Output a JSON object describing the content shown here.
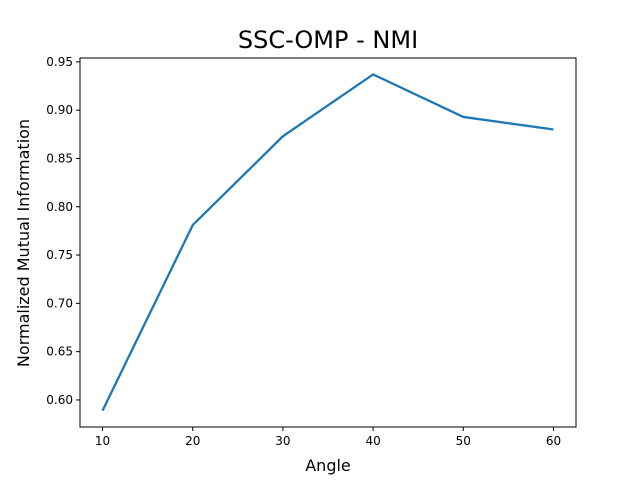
{
  "chart_data": {
    "type": "line",
    "title": "SSC-OMP - NMI",
    "xlabel": "Angle",
    "ylabel": "Normalized Mutual Information",
    "x": [
      10,
      20,
      30,
      40,
      50,
      60
    ],
    "series": [
      {
        "values": [
          0.589,
          0.781,
          0.873,
          0.937,
          0.893,
          0.88
        ],
        "color": "#1f77b4"
      }
    ],
    "xlim": [
      7.5,
      62.5
    ],
    "ylim": [
      0.572,
      0.954
    ],
    "xticks": [
      10,
      20,
      30,
      40,
      50,
      60
    ],
    "xtick_labels": [
      "10",
      "20",
      "30",
      "40",
      "50",
      "60"
    ],
    "yticks": [
      0.6,
      0.65,
      0.7,
      0.75,
      0.8,
      0.85,
      0.9,
      0.95
    ],
    "ytick_labels": [
      "0.60",
      "0.65",
      "0.70",
      "0.75",
      "0.80",
      "0.85",
      "0.90",
      "0.95"
    ],
    "grid": false,
    "legend": false
  }
}
